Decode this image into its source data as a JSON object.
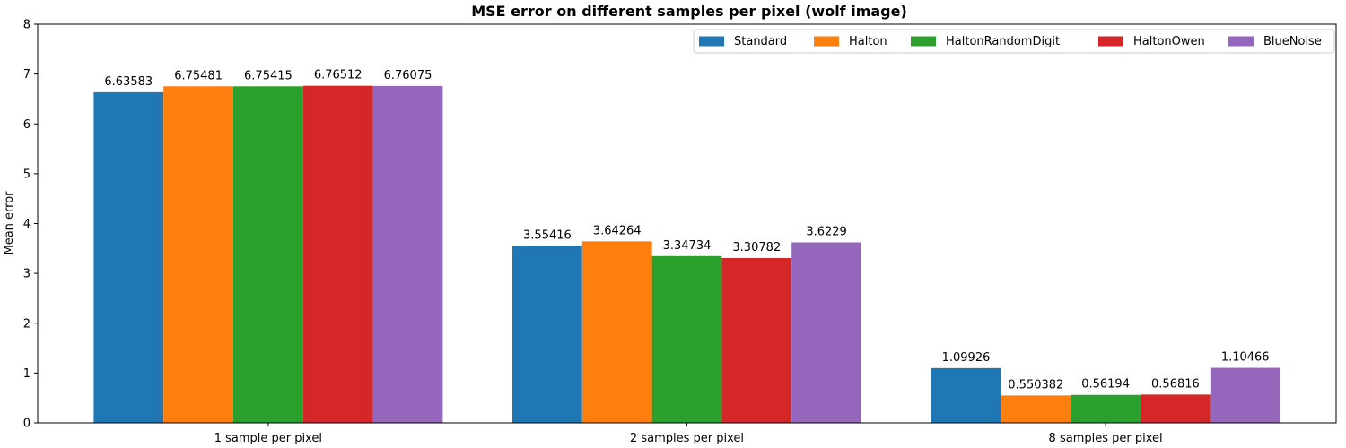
{
  "chart_data": {
    "type": "bar",
    "title": "MSE error on different samples per pixel (wolf image)",
    "xlabel": "",
    "ylabel": "Mean error",
    "ylim": [
      0,
      8
    ],
    "yticks": [
      0,
      1,
      2,
      3,
      4,
      5,
      6,
      7,
      8
    ],
    "grid": false,
    "legend_position": "top-right",
    "categories": [
      "1 sample per pixel",
      "2 samples per pixel",
      "8 samples per pixel"
    ],
    "series": [
      {
        "name": "Standard",
        "color": "#1f77b4",
        "values": [
          6.63583,
          3.55416,
          1.09926
        ],
        "labels": [
          "6.63583",
          "3.55416",
          "1.09926"
        ]
      },
      {
        "name": "Halton",
        "color": "#ff7f0e",
        "values": [
          6.75481,
          3.64264,
          0.550382
        ],
        "labels": [
          "6.75481",
          "3.64264",
          "0.550382"
        ]
      },
      {
        "name": "HaltonRandomDigit",
        "color": "#2ca02c",
        "values": [
          6.75415,
          3.34734,
          0.56194
        ],
        "labels": [
          "6.75415",
          "3.34734",
          "0.56194"
        ]
      },
      {
        "name": "HaltonOwen",
        "color": "#d62728",
        "values": [
          6.76512,
          3.30782,
          0.56816
        ],
        "labels": [
          "6.76512",
          "3.30782",
          "0.56816"
        ]
      },
      {
        "name": "BlueNoise",
        "color": "#9467bd",
        "values": [
          6.76075,
          3.6229,
          1.10466
        ],
        "labels": [
          "6.76075",
          "3.6229",
          "1.10466"
        ]
      }
    ]
  }
}
